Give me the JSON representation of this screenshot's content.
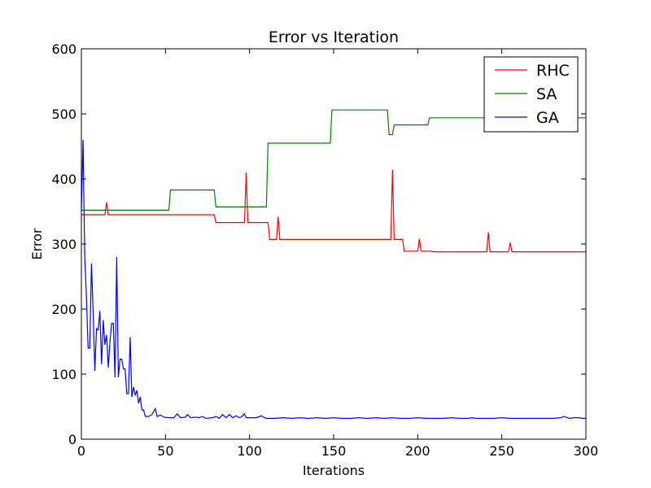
{
  "chart_data": {
    "type": "line",
    "title": "Error vs Iteration",
    "xlabel": "Iterations",
    "ylabel": "Error",
    "xlim": [
      0,
      300
    ],
    "ylim": [
      0,
      600
    ],
    "xticks": [
      0,
      50,
      100,
      150,
      200,
      250,
      300
    ],
    "yticks": [
      0,
      100,
      200,
      300,
      400,
      500,
      600
    ],
    "grid": false,
    "legend_position": "top-right",
    "series": [
      {
        "name": "RHC",
        "color": "#ff0000",
        "points": [
          [
            0,
            345
          ],
          [
            14,
            345
          ],
          [
            15,
            364
          ],
          [
            16,
            345
          ],
          [
            79,
            345
          ],
          [
            80,
            333
          ],
          [
            97,
            333
          ],
          [
            98,
            410
          ],
          [
            99,
            333
          ],
          [
            111,
            333
          ],
          [
            112,
            307
          ],
          [
            116,
            307
          ],
          [
            117,
            342
          ],
          [
            118,
            307
          ],
          [
            184,
            307
          ],
          [
            185,
            414
          ],
          [
            186,
            307
          ],
          [
            191,
            307
          ],
          [
            192,
            289
          ],
          [
            200,
            289
          ],
          [
            201,
            308
          ],
          [
            202,
            289
          ],
          [
            208,
            289
          ],
          [
            209,
            288
          ],
          [
            241,
            288
          ],
          [
            242,
            318
          ],
          [
            243,
            288
          ],
          [
            254,
            288
          ],
          [
            255,
            302
          ],
          [
            256,
            288
          ],
          [
            300,
            288
          ]
        ]
      },
      {
        "name": "SA",
        "color": "#008000",
        "points": [
          [
            0,
            352
          ],
          [
            52,
            352
          ],
          [
            53,
            383
          ],
          [
            79,
            383
          ],
          [
            80,
            357
          ],
          [
            110,
            357
          ],
          [
            111,
            455
          ],
          [
            148,
            455
          ],
          [
            149,
            506
          ],
          [
            182,
            506
          ],
          [
            183,
            468
          ],
          [
            185,
            468
          ],
          [
            186,
            483
          ],
          [
            206,
            483
          ],
          [
            207,
            494
          ],
          [
            300,
            494
          ]
        ]
      },
      {
        "name": "GA",
        "color": "#0000ff",
        "points": [
          [
            0,
            350
          ],
          [
            1,
            460
          ],
          [
            2,
            280
          ],
          [
            3,
            220
          ],
          [
            4,
            140
          ],
          [
            5,
            140
          ],
          [
            6,
            270
          ],
          [
            7,
            195
          ],
          [
            8,
            105
          ],
          [
            9,
            170
          ],
          [
            10,
            168
          ],
          [
            11,
            197
          ],
          [
            12,
            115
          ],
          [
            13,
            183
          ],
          [
            14,
            145
          ],
          [
            15,
            160
          ],
          [
            16,
            110
          ],
          [
            17,
            150
          ],
          [
            18,
            178
          ],
          [
            19,
            178
          ],
          [
            20,
            95
          ],
          [
            21,
            280
          ],
          [
            22,
            95
          ],
          [
            23,
            123
          ],
          [
            24,
            123
          ],
          [
            25,
            108
          ],
          [
            26,
            108
          ],
          [
            27,
            70
          ],
          [
            28,
            70
          ],
          [
            29,
            157
          ],
          [
            30,
            65
          ],
          [
            31,
            80
          ],
          [
            32,
            68
          ],
          [
            33,
            75
          ],
          [
            34,
            55
          ],
          [
            35,
            65
          ],
          [
            36,
            45
          ],
          [
            37,
            45
          ],
          [
            38,
            35
          ],
          [
            40,
            35
          ],
          [
            42,
            38
          ],
          [
            44,
            47
          ],
          [
            45,
            35
          ],
          [
            47,
            37
          ],
          [
            49,
            34
          ],
          [
            52,
            33
          ],
          [
            55,
            33
          ],
          [
            57,
            39
          ],
          [
            59,
            33
          ],
          [
            62,
            34
          ],
          [
            63,
            38
          ],
          [
            65,
            33
          ],
          [
            68,
            34
          ],
          [
            70,
            33
          ],
          [
            72,
            35
          ],
          [
            74,
            32
          ],
          [
            78,
            33
          ],
          [
            80,
            35
          ],
          [
            82,
            32
          ],
          [
            84,
            38
          ],
          [
            86,
            33
          ],
          [
            88,
            38
          ],
          [
            90,
            33
          ],
          [
            92,
            36
          ],
          [
            94,
            33
          ],
          [
            96,
            36
          ],
          [
            97,
            39
          ],
          [
            98,
            33
          ],
          [
            100,
            33
          ],
          [
            104,
            33
          ],
          [
            107,
            36
          ],
          [
            109,
            33
          ],
          [
            110,
            32
          ],
          [
            115,
            32
          ],
          [
            120,
            33
          ],
          [
            125,
            32
          ],
          [
            130,
            33
          ],
          [
            135,
            32
          ],
          [
            140,
            33
          ],
          [
            145,
            32
          ],
          [
            150,
            33
          ],
          [
            155,
            32
          ],
          [
            160,
            32
          ],
          [
            165,
            33
          ],
          [
            170,
            32
          ],
          [
            175,
            33
          ],
          [
            180,
            32
          ],
          [
            185,
            33
          ],
          [
            190,
            32
          ],
          [
            195,
            32
          ],
          [
            200,
            33
          ],
          [
            205,
            32
          ],
          [
            210,
            32
          ],
          [
            215,
            32
          ],
          [
            220,
            33
          ],
          [
            225,
            32
          ],
          [
            230,
            32
          ],
          [
            232,
            33
          ],
          [
            235,
            32
          ],
          [
            240,
            32
          ],
          [
            245,
            32
          ],
          [
            250,
            33
          ],
          [
            255,
            32
          ],
          [
            260,
            32
          ],
          [
            265,
            32
          ],
          [
            270,
            32
          ],
          [
            275,
            32
          ],
          [
            280,
            32
          ],
          [
            285,
            33
          ],
          [
            287,
            35
          ],
          [
            290,
            32
          ],
          [
            293,
            33
          ],
          [
            296,
            33
          ],
          [
            298,
            32
          ],
          [
            300,
            32
          ]
        ]
      }
    ]
  }
}
